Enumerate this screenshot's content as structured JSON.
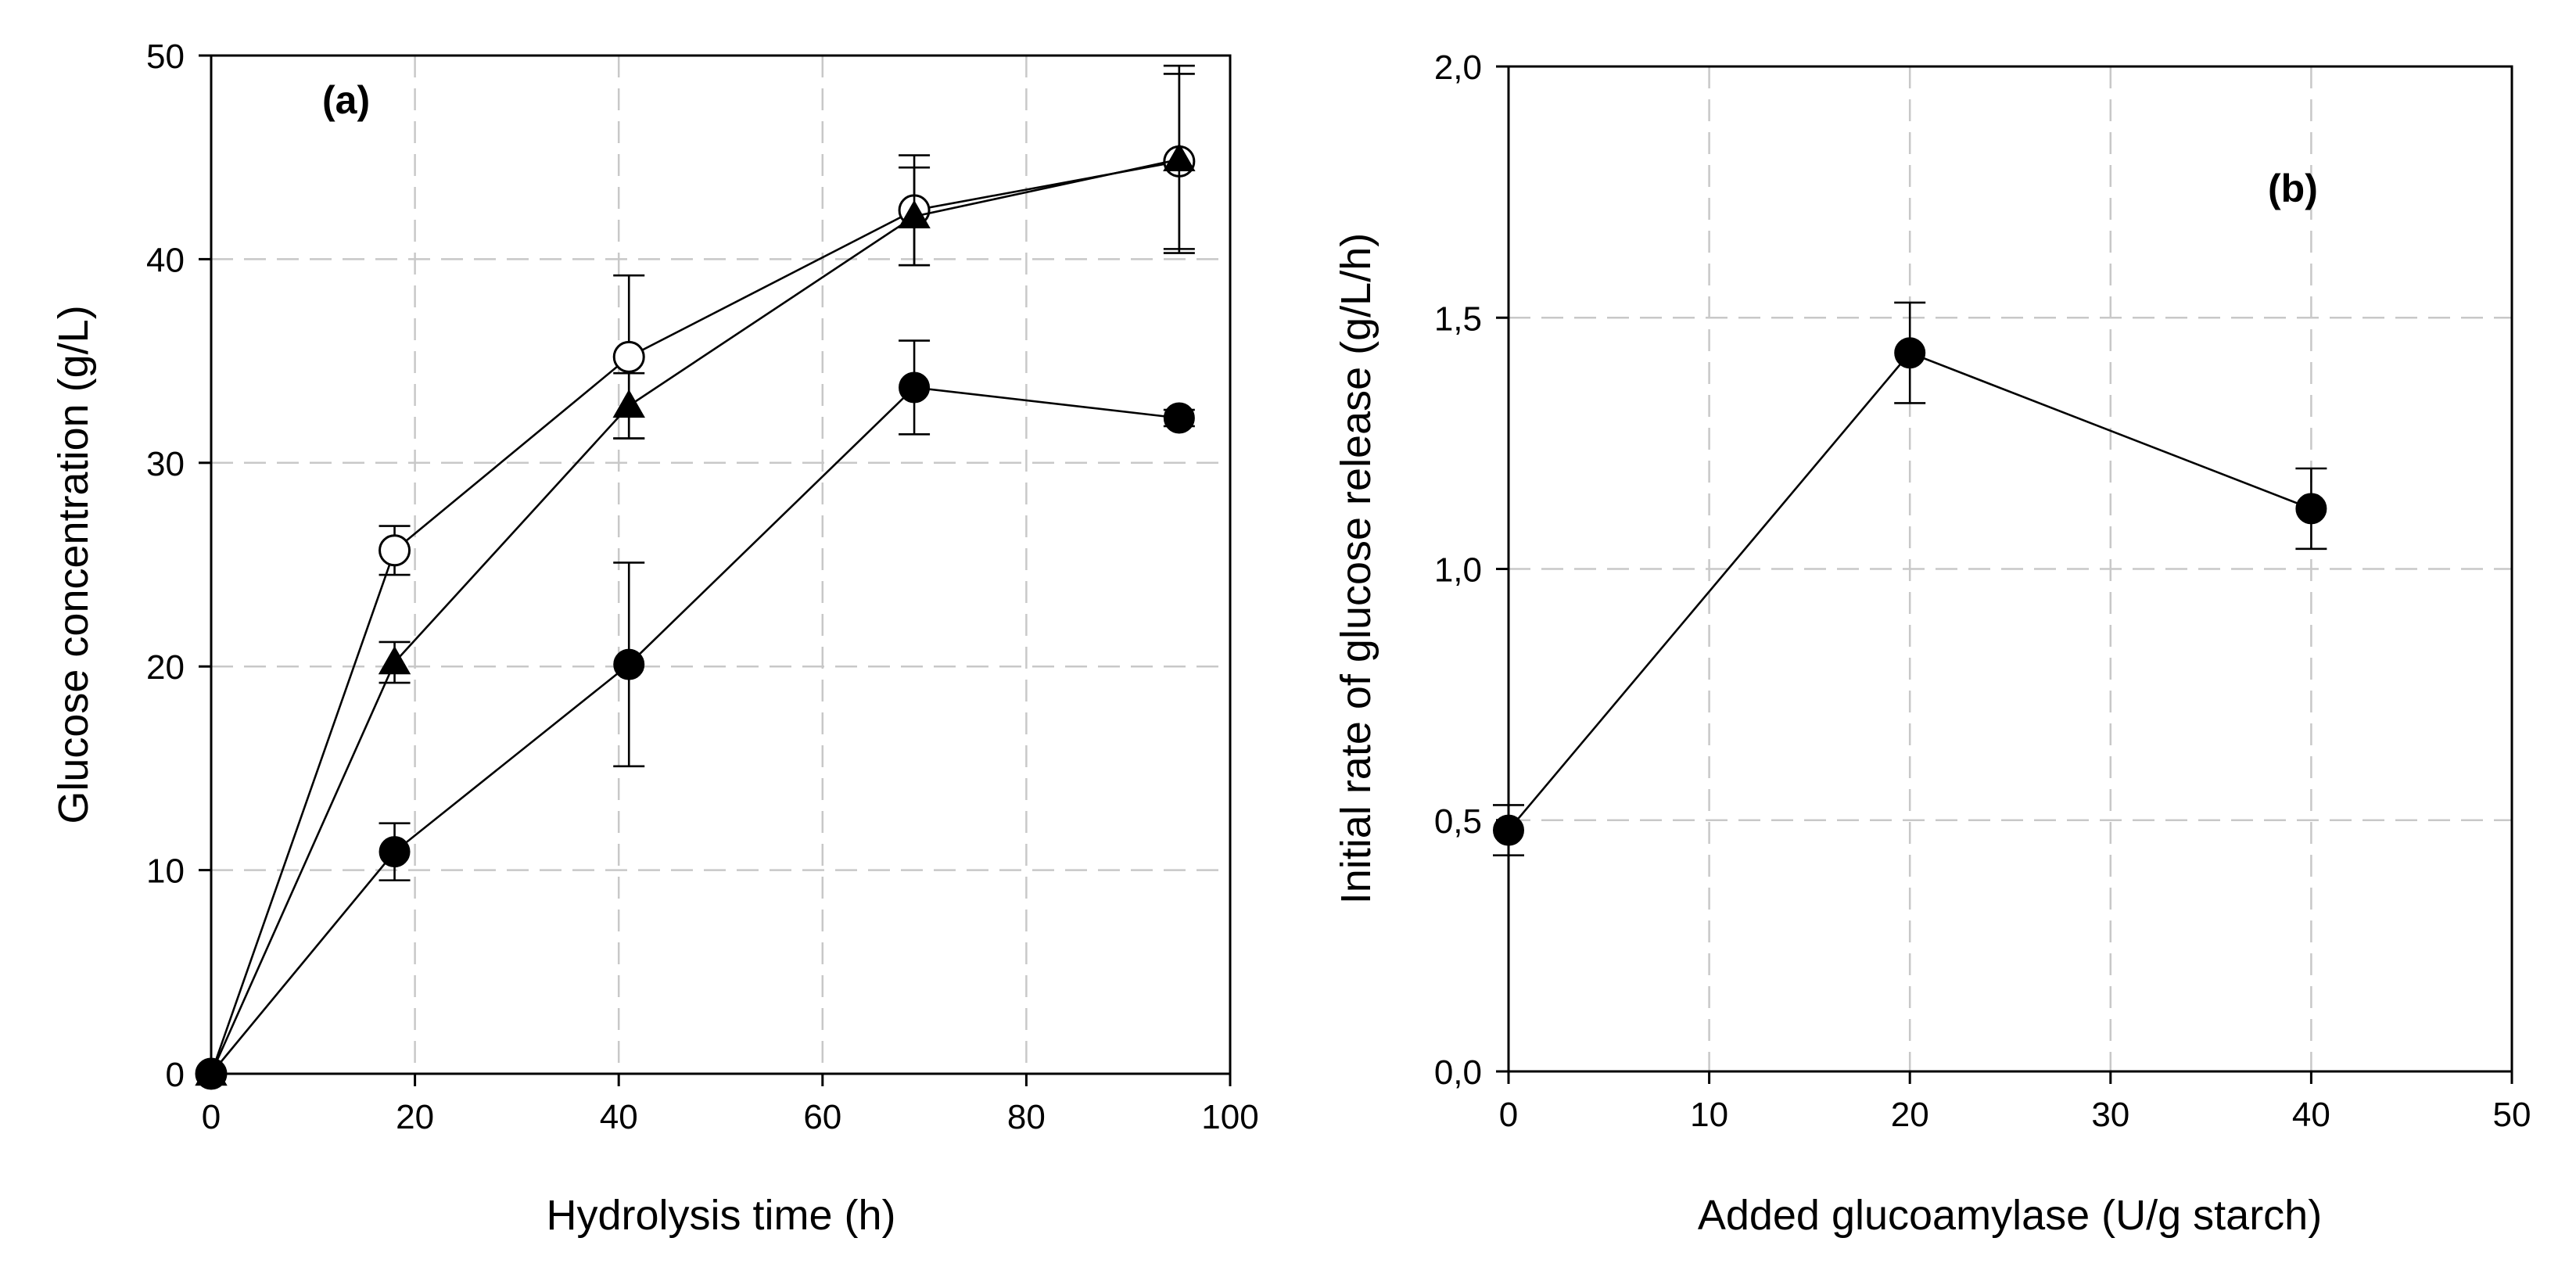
{
  "chart_data": [
    {
      "id": "a",
      "type": "line",
      "panel_label": "(a)",
      "xlabel": "Hydrolysis time (h)",
      "ylabel": "Glucose concentration (g/L)",
      "xlim": [
        0,
        100
      ],
      "ylim": [
        0,
        50
      ],
      "xticks": [
        0,
        20,
        40,
        60,
        80,
        100
      ],
      "xtick_labels": [
        "0",
        "20",
        "40",
        "60",
        "80",
        "100"
      ],
      "yticks": [
        0,
        10,
        20,
        30,
        40,
        50
      ],
      "ytick_labels": [
        "0",
        "10",
        "20",
        "30",
        "40",
        "50"
      ],
      "grid": true,
      "series": [
        {
          "name": "open circles",
          "marker": "circle-open",
          "x": [
            0,
            18,
            41,
            69,
            95
          ],
          "values": [
            0,
            25.7,
            35.2,
            42.4,
            44.8
          ],
          "errors": [
            0,
            1.2,
            4.0,
            2.7,
            4.3
          ]
        },
        {
          "name": "filled triangles",
          "marker": "triangle-filled",
          "x": [
            0,
            18,
            41,
            69,
            95
          ],
          "values": [
            0,
            20.2,
            32.8,
            42.1,
            44.9
          ],
          "errors": [
            0,
            1.0,
            1.6,
            2.4,
            4.6
          ]
        },
        {
          "name": "filled circles",
          "marker": "circle-filled",
          "x": [
            0,
            18,
            41,
            69,
            95
          ],
          "values": [
            0,
            10.9,
            20.1,
            33.7,
            32.2
          ],
          "errors": [
            0,
            1.4,
            5.0,
            2.3,
            0.4
          ]
        }
      ]
    },
    {
      "id": "b",
      "type": "line",
      "panel_label": "(b)",
      "xlabel": "Added glucoamylase (U/g starch)",
      "ylabel": "Initial rate of glucose release (g/L/h)",
      "xlim": [
        0,
        50
      ],
      "ylim": [
        0,
        2
      ],
      "xticks": [
        0,
        10,
        20,
        30,
        40,
        50
      ],
      "xtick_labels": [
        "0",
        "10",
        "20",
        "30",
        "40",
        "50"
      ],
      "yticks": [
        0,
        0.5,
        1,
        1.5,
        2
      ],
      "ytick_labels": [
        "0,0",
        "0,5",
        "1,0",
        "1,5",
        "2,0"
      ],
      "grid": true,
      "series": [
        {
          "name": "initial rate",
          "marker": "circle-filled",
          "x": [
            0,
            20,
            40
          ],
          "values": [
            0.48,
            1.43,
            1.12
          ],
          "errors": [
            0.05,
            0.1,
            0.08
          ]
        }
      ]
    }
  ]
}
